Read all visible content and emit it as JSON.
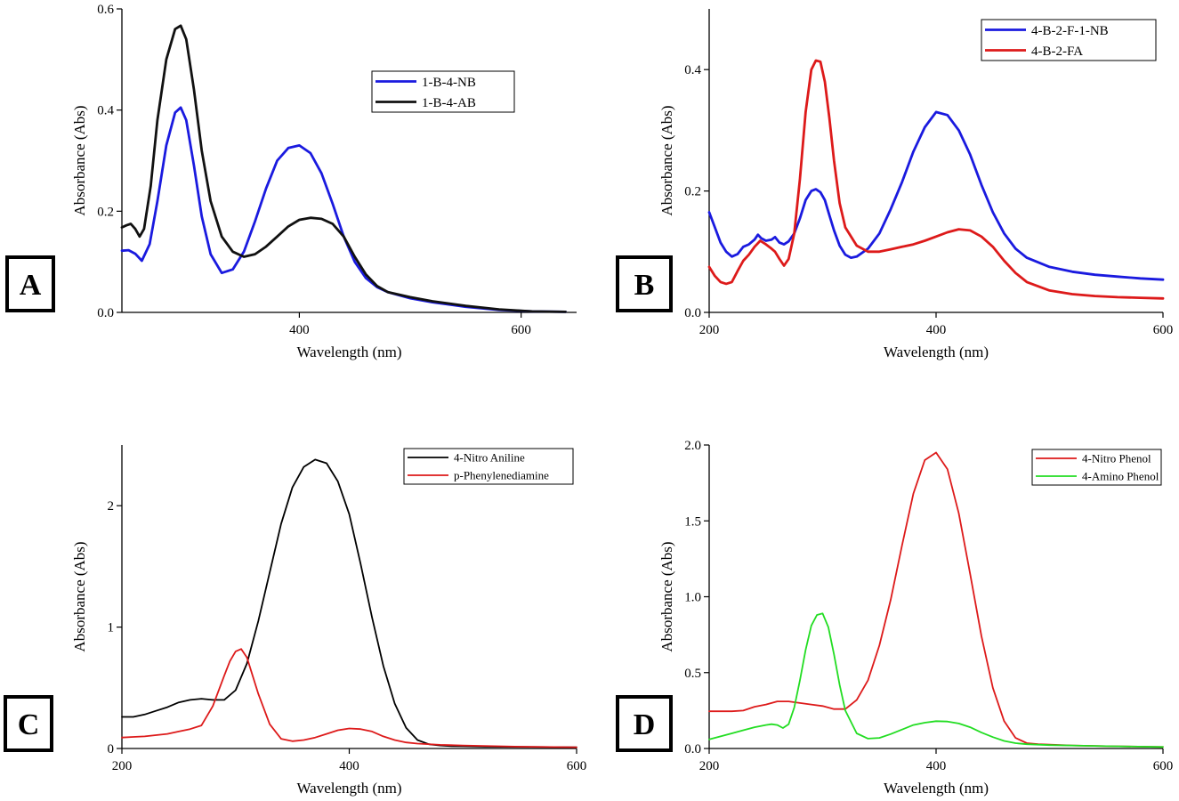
{
  "chart_data": [
    {
      "panel_label": "A",
      "type": "line",
      "xlabel": "Wavelength (nm)",
      "ylabel": "Absorbance (Abs)",
      "xlim": [
        240,
        650
      ],
      "ylim": [
        0,
        0.6
      ],
      "xticks": [
        400,
        600
      ],
      "xtick_labels": [
        "400",
        "600"
      ],
      "yticks": [
        0,
        0.2,
        0.4,
        0.6
      ],
      "ytick_labels": [
        "0.0",
        "0.2",
        "0.4",
        "0.6"
      ],
      "legend_position": "top-right",
      "series": [
        {
          "name": "1-B-4-NB",
          "color": "#1a1adf",
          "x": [
            240,
            246,
            252,
            258,
            265,
            272,
            280,
            288,
            293,
            298,
            305,
            312,
            320,
            330,
            340,
            350,
            360,
            370,
            380,
            390,
            400,
            410,
            420,
            430,
            440,
            450,
            460,
            470,
            480,
            500,
            520,
            550,
            580,
            610,
            640
          ],
          "y": [
            0.122,
            0.123,
            0.116,
            0.102,
            0.135,
            0.22,
            0.33,
            0.395,
            0.405,
            0.38,
            0.29,
            0.19,
            0.115,
            0.078,
            0.085,
            0.12,
            0.18,
            0.245,
            0.3,
            0.325,
            0.33,
            0.315,
            0.275,
            0.215,
            0.15,
            0.1,
            0.068,
            0.05,
            0.04,
            0.028,
            0.02,
            0.011,
            0.005,
            0.002,
            0.001
          ]
        },
        {
          "name": "1-B-4-AB",
          "color": "#111111",
          "x": [
            240,
            244,
            248,
            252,
            256,
            260,
            266,
            272,
            280,
            288,
            293,
            298,
            305,
            312,
            320,
            330,
            340,
            350,
            360,
            370,
            380,
            390,
            400,
            410,
            420,
            430,
            440,
            450,
            460,
            470,
            480,
            500,
            520,
            550,
            580,
            610,
            640
          ],
          "y": [
            0.168,
            0.172,
            0.175,
            0.165,
            0.15,
            0.165,
            0.25,
            0.38,
            0.5,
            0.56,
            0.567,
            0.54,
            0.44,
            0.32,
            0.22,
            0.15,
            0.12,
            0.11,
            0.115,
            0.13,
            0.15,
            0.17,
            0.183,
            0.187,
            0.185,
            0.175,
            0.15,
            0.11,
            0.075,
            0.052,
            0.04,
            0.03,
            0.022,
            0.013,
            0.006,
            0.002,
            0.001
          ]
        }
      ]
    },
    {
      "panel_label": "B",
      "type": "line",
      "xlabel": "Wavelength (nm)",
      "ylabel": "Absorbance (Abs)",
      "xlim": [
        200,
        600
      ],
      "ylim": [
        0,
        0.5
      ],
      "xticks": [
        200,
        400,
        600
      ],
      "xtick_labels": [
        "200",
        "400",
        "600"
      ],
      "yticks": [
        0,
        0.2,
        0.4
      ],
      "ytick_labels": [
        "0.0",
        "0.2",
        "0.4"
      ],
      "legend_position": "top-right",
      "series": [
        {
          "name": "4-B-2-F-1-NB",
          "color": "#1a1adf",
          "x": [
            200,
            205,
            210,
            215,
            220,
            225,
            230,
            235,
            240,
            243,
            246,
            250,
            255,
            258,
            262,
            266,
            270,
            275,
            280,
            285,
            290,
            294,
            298,
            302,
            306,
            310,
            315,
            320,
            325,
            330,
            340,
            350,
            360,
            370,
            380,
            390,
            400,
            410,
            420,
            430,
            440,
            450,
            460,
            470,
            480,
            500,
            520,
            540,
            560,
            580,
            600
          ],
          "y": [
            0.165,
            0.14,
            0.115,
            0.1,
            0.092,
            0.096,
            0.108,
            0.112,
            0.12,
            0.128,
            0.122,
            0.118,
            0.12,
            0.124,
            0.115,
            0.112,
            0.117,
            0.13,
            0.155,
            0.185,
            0.2,
            0.203,
            0.198,
            0.185,
            0.16,
            0.135,
            0.11,
            0.095,
            0.09,
            0.092,
            0.105,
            0.13,
            0.17,
            0.215,
            0.265,
            0.305,
            0.33,
            0.325,
            0.3,
            0.26,
            0.21,
            0.165,
            0.13,
            0.105,
            0.09,
            0.075,
            0.067,
            0.062,
            0.059,
            0.056,
            0.054
          ]
        },
        {
          "name": "4-B-2-FA",
          "color": "#dd1a1a",
          "x": [
            200,
            205,
            210,
            215,
            220,
            225,
            230,
            235,
            240,
            245,
            250,
            255,
            258,
            262,
            266,
            270,
            275,
            280,
            285,
            290,
            294,
            298,
            302,
            306,
            310,
            315,
            320,
            330,
            340,
            350,
            360,
            370,
            380,
            390,
            400,
            410,
            420,
            430,
            440,
            450,
            460,
            470,
            480,
            500,
            520,
            540,
            560,
            580,
            600
          ],
          "y": [
            0.075,
            0.06,
            0.05,
            0.047,
            0.05,
            0.068,
            0.085,
            0.095,
            0.108,
            0.118,
            0.112,
            0.105,
            0.1,
            0.088,
            0.077,
            0.088,
            0.13,
            0.22,
            0.33,
            0.4,
            0.415,
            0.413,
            0.38,
            0.32,
            0.25,
            0.18,
            0.14,
            0.11,
            0.1,
            0.1,
            0.104,
            0.108,
            0.112,
            0.118,
            0.125,
            0.132,
            0.137,
            0.135,
            0.125,
            0.108,
            0.085,
            0.065,
            0.05,
            0.036,
            0.03,
            0.027,
            0.025,
            0.024,
            0.023
          ]
        }
      ]
    },
    {
      "panel_label": "C",
      "type": "line",
      "xlabel": "Wavelength (nm)",
      "ylabel": "Absorbance (Abs)",
      "xlim": [
        200,
        600
      ],
      "ylim": [
        0,
        2.5
      ],
      "xticks": [
        200,
        400,
        600
      ],
      "xtick_labels": [
        "200",
        "400",
        "600"
      ],
      "yticks": [
        0,
        1,
        2
      ],
      "ytick_labels": [
        "0",
        "1",
        "2"
      ],
      "legend_position": "top-right",
      "series": [
        {
          "name": "4-Nitro Aniline",
          "color": "#000000",
          "x": [
            200,
            210,
            220,
            230,
            240,
            250,
            260,
            270,
            280,
            290,
            300,
            310,
            320,
            330,
            340,
            350,
            360,
            370,
            380,
            390,
            400,
            410,
            420,
            430,
            440,
            450,
            460,
            470,
            480,
            490,
            500,
            520,
            550,
            600
          ],
          "y": [
            0.26,
            0.26,
            0.28,
            0.31,
            0.34,
            0.38,
            0.4,
            0.41,
            0.4,
            0.4,
            0.48,
            0.7,
            1.05,
            1.45,
            1.85,
            2.15,
            2.32,
            2.38,
            2.35,
            2.2,
            1.93,
            1.52,
            1.08,
            0.68,
            0.37,
            0.17,
            0.07,
            0.035,
            0.025,
            0.02,
            0.018,
            0.015,
            0.013,
            0.01
          ]
        },
        {
          "name": "p-Phenylenediamine",
          "color": "#dd1a1a",
          "x": [
            200,
            210,
            220,
            230,
            240,
            250,
            260,
            270,
            280,
            290,
            295,
            300,
            305,
            310,
            320,
            330,
            340,
            350,
            360,
            370,
            380,
            390,
            400,
            410,
            420,
            430,
            440,
            450,
            460,
            480,
            500,
            550,
            600
          ],
          "y": [
            0.09,
            0.095,
            0.1,
            0.11,
            0.12,
            0.14,
            0.16,
            0.19,
            0.35,
            0.6,
            0.72,
            0.8,
            0.82,
            0.75,
            0.45,
            0.2,
            0.08,
            0.06,
            0.07,
            0.09,
            0.12,
            0.15,
            0.165,
            0.16,
            0.14,
            0.1,
            0.07,
            0.05,
            0.04,
            0.03,
            0.025,
            0.015,
            0.01
          ]
        }
      ]
    },
    {
      "panel_label": "D",
      "type": "line",
      "xlabel": "Wavelength (nm)",
      "ylabel": "Absorbance (Abs)",
      "xlim": [
        200,
        600
      ],
      "ylim": [
        0,
        2.0
      ],
      "xticks": [
        200,
        400,
        600
      ],
      "xtick_labels": [
        "200",
        "400",
        "600"
      ],
      "yticks": [
        0,
        0.5,
        1.0,
        1.5,
        2.0
      ],
      "ytick_labels": [
        "0.0",
        "0.5",
        "1.0",
        "1.5",
        "2.0"
      ],
      "legend_position": "top-right",
      "series": [
        {
          "name": "4-Nitro Phenol",
          "color": "#dd1a1a",
          "x": [
            200,
            210,
            220,
            230,
            240,
            250,
            260,
            270,
            280,
            290,
            300,
            310,
            320,
            330,
            340,
            350,
            360,
            370,
            380,
            390,
            400,
            410,
            420,
            430,
            440,
            450,
            460,
            470,
            480,
            490,
            500,
            520,
            550,
            600
          ],
          "y": [
            0.245,
            0.245,
            0.245,
            0.25,
            0.275,
            0.29,
            0.31,
            0.31,
            0.3,
            0.29,
            0.28,
            0.26,
            0.26,
            0.32,
            0.45,
            0.68,
            0.98,
            1.34,
            1.68,
            1.9,
            1.95,
            1.84,
            1.55,
            1.15,
            0.74,
            0.4,
            0.18,
            0.07,
            0.035,
            0.028,
            0.025,
            0.02,
            0.015,
            0.01
          ]
        },
        {
          "name": "4-Amino Phenol",
          "color": "#22dd22",
          "x": [
            200,
            210,
            220,
            230,
            240,
            250,
            255,
            260,
            265,
            270,
            275,
            280,
            285,
            290,
            295,
            300,
            305,
            310,
            315,
            320,
            330,
            340,
            350,
            360,
            370,
            380,
            390,
            400,
            410,
            420,
            430,
            440,
            450,
            460,
            470,
            480,
            500,
            550,
            600
          ],
          "y": [
            0.06,
            0.08,
            0.1,
            0.12,
            0.14,
            0.155,
            0.16,
            0.155,
            0.135,
            0.16,
            0.27,
            0.45,
            0.65,
            0.81,
            0.88,
            0.89,
            0.8,
            0.62,
            0.42,
            0.25,
            0.1,
            0.065,
            0.07,
            0.095,
            0.125,
            0.155,
            0.17,
            0.18,
            0.178,
            0.165,
            0.14,
            0.105,
            0.075,
            0.05,
            0.035,
            0.028,
            0.022,
            0.015,
            0.01
          ]
        }
      ]
    }
  ]
}
